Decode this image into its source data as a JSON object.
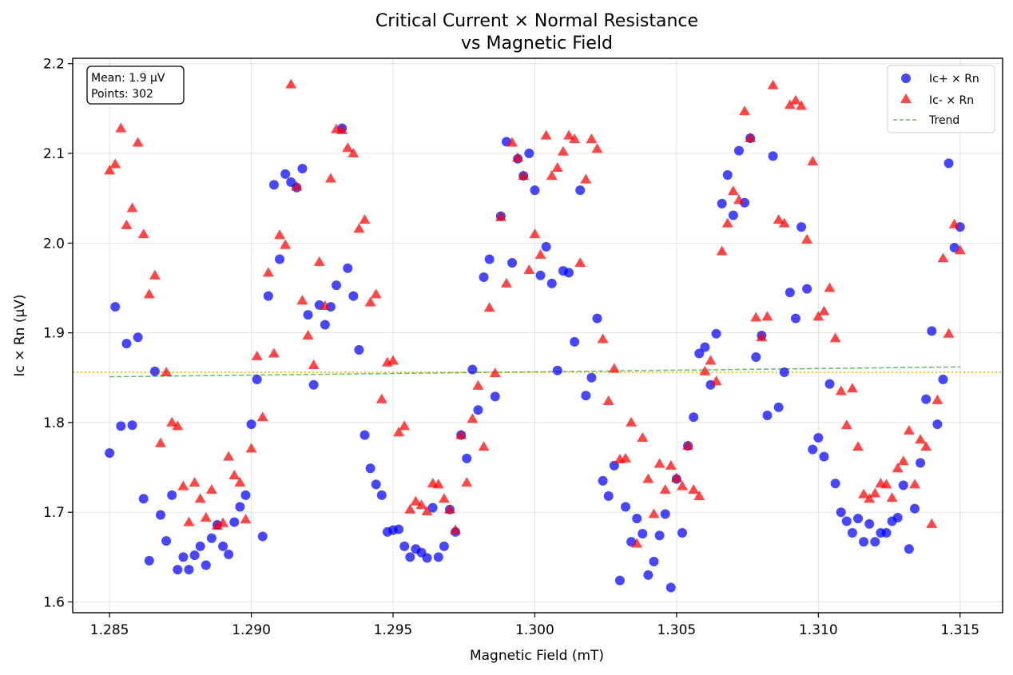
{
  "chart_data": {
    "type": "scatter",
    "title": "Critical Current × Normal Resistance",
    "subtitle": "vs Magnetic Field",
    "xlabel": "Magnetic Field (mT)",
    "ylabel": "Ic × Rn (µV)",
    "xlim": [
      1.2837,
      1.3165
    ],
    "ylim": [
      1.588,
      2.206
    ],
    "x_ticks": [
      "1.285",
      "1.290",
      "1.295",
      "1.300",
      "1.305",
      "1.310",
      "1.315"
    ],
    "x_tick_values": [
      1.285,
      1.29,
      1.295,
      1.3,
      1.305,
      1.31,
      1.315
    ],
    "y_ticks": [
      "1.6",
      "1.7",
      "1.8",
      "1.9",
      "2.0",
      "2.1",
      "2.2"
    ],
    "y_tick_values": [
      1.6,
      1.7,
      1.8,
      1.9,
      2.0,
      2.1,
      2.2
    ],
    "grid": true,
    "legend_position": "top-right",
    "info_box": {
      "mean_text": "Mean: 1.9 µV",
      "points_text": "Points: 302"
    },
    "mean_line": {
      "y": 1.856,
      "color": "#ffc125",
      "style": "dotted"
    },
    "trend": {
      "name": "Trend",
      "x": [
        1.285,
        1.315
      ],
      "y": [
        1.851,
        1.862
      ],
      "color": "#4daf4a"
    },
    "series": [
      {
        "name": "Ic+ × Rn",
        "marker": "circle",
        "color": "#0000ff",
        "x": [
          1.285,
          1.2852,
          1.2854,
          1.2856,
          1.2858,
          1.286,
          1.2862,
          1.2864,
          1.2866,
          1.2868,
          1.287,
          1.2872,
          1.2874,
          1.2876,
          1.2878,
          1.288,
          1.2882,
          1.2884,
          1.2886,
          1.2888,
          1.289,
          1.2892,
          1.2894,
          1.2896,
          1.2898,
          1.29,
          1.2902,
          1.2904,
          1.2906,
          1.2908,
          1.291,
          1.2912,
          1.2914,
          1.2916,
          1.2918,
          1.292,
          1.2922,
          1.2924,
          1.2926,
          1.2928,
          1.293,
          1.2932,
          1.2934,
          1.2936,
          1.2938,
          1.294,
          1.2942,
          1.2944,
          1.2946,
          1.2948,
          1.295,
          1.2952,
          1.2954,
          1.2956,
          1.2958,
          1.296,
          1.2962,
          1.2964,
          1.2966,
          1.2968,
          1.297,
          1.2972,
          1.2974,
          1.2976,
          1.2978,
          1.298,
          1.2982,
          1.2984,
          1.2986,
          1.2988,
          1.299,
          1.2992,
          1.2994,
          1.2996,
          1.2998,
          1.3,
          1.3002,
          1.3004,
          1.3006,
          1.3008,
          1.301,
          1.3012,
          1.3014,
          1.3016,
          1.3018,
          1.302,
          1.3022,
          1.3024,
          1.3026,
          1.3028,
          1.303,
          1.3032,
          1.3034,
          1.3036,
          1.3038,
          1.304,
          1.3042,
          1.3044,
          1.3046,
          1.3048,
          1.305,
          1.3052,
          1.3054,
          1.3056,
          1.3058,
          1.306,
          1.3062,
          1.3064,
          1.3066,
          1.3068,
          1.307,
          1.3072,
          1.3074,
          1.3076,
          1.3078,
          1.308,
          1.3082,
          1.3084,
          1.3086,
          1.3088,
          1.309,
          1.3092,
          1.3094,
          1.3096,
          1.3098,
          1.31,
          1.3102,
          1.3104,
          1.3106,
          1.3108,
          1.311,
          1.3112,
          1.3114,
          1.3116,
          1.3118,
          1.312,
          1.3122,
          1.3124,
          1.3126,
          1.3128,
          1.313,
          1.3132,
          1.3134,
          1.3136,
          1.3138,
          1.314,
          1.3142,
          1.3144,
          1.3146,
          1.3148,
          1.315
        ],
        "y": [
          1.766,
          1.929,
          1.796,
          1.888,
          1.797,
          1.895,
          1.715,
          1.646,
          1.857,
          1.697,
          1.668,
          1.719,
          1.636,
          1.65,
          1.636,
          1.652,
          1.662,
          1.641,
          1.671,
          1.686,
          1.662,
          1.653,
          1.689,
          1.706,
          1.719,
          1.798,
          1.848,
          1.673,
          1.941,
          2.065,
          1.982,
          2.077,
          2.068,
          2.062,
          2.083,
          1.92,
          1.842,
          1.931,
          1.909,
          1.929,
          1.953,
          2.128,
          1.972,
          1.941,
          1.881,
          1.786,
          1.749,
          1.731,
          1.719,
          1.678,
          1.68,
          1.681,
          1.662,
          1.65,
          1.659,
          1.655,
          1.649,
          1.705,
          1.65,
          1.662,
          1.703,
          1.678,
          1.786,
          1.76,
          1.859,
          1.814,
          1.962,
          1.982,
          1.829,
          2.03,
          2.113,
          1.978,
          2.094,
          2.075,
          2.1,
          2.059,
          1.964,
          1.996,
          1.955,
          1.858,
          1.969,
          1.967,
          1.89,
          2.059,
          1.83,
          1.85,
          1.916,
          1.735,
          1.718,
          1.752,
          1.624,
          1.706,
          1.667,
          1.693,
          1.676,
          1.63,
          1.645,
          1.674,
          1.698,
          1.616,
          1.737,
          1.677,
          1.774,
          1.806,
          1.877,
          1.884,
          1.842,
          1.899,
          2.044,
          2.076,
          2.031,
          2.103,
          2.045,
          2.117,
          1.873,
          1.897,
          1.808,
          2.097,
          1.817,
          1.856,
          1.945,
          1.916,
          2.018,
          1.949,
          1.77,
          1.783,
          1.762,
          1.843,
          1.732,
          1.7,
          1.69,
          1.677,
          1.693,
          1.667,
          1.687,
          1.667,
          1.677,
          1.677,
          1.69,
          1.694,
          1.73,
          1.659,
          1.704,
          1.755,
          1.826,
          1.902,
          1.798,
          1.848,
          2.089,
          1.995,
          2.018
        ]
      },
      {
        "name": "Ic- × Rn",
        "marker": "triangle",
        "color": "#ff0000",
        "x": [
          1.285,
          1.2852,
          1.2854,
          1.2856,
          1.2858,
          1.286,
          1.2862,
          1.2864,
          1.2866,
          1.2868,
          1.287,
          1.2872,
          1.2874,
          1.2876,
          1.2878,
          1.288,
          1.2882,
          1.2884,
          1.2886,
          1.2888,
          1.289,
          1.2892,
          1.2894,
          1.2896,
          1.2898,
          1.29,
          1.2902,
          1.2904,
          1.2906,
          1.2908,
          1.291,
          1.2912,
          1.2914,
          1.2916,
          1.2918,
          1.292,
          1.2922,
          1.2924,
          1.2926,
          1.2928,
          1.293,
          1.2932,
          1.2934,
          1.2936,
          1.2938,
          1.294,
          1.2942,
          1.2944,
          1.2946,
          1.2948,
          1.295,
          1.2952,
          1.2954,
          1.2956,
          1.2958,
          1.296,
          1.2962,
          1.2964,
          1.2966,
          1.2968,
          1.297,
          1.2972,
          1.2974,
          1.2976,
          1.2978,
          1.298,
          1.2982,
          1.2984,
          1.2986,
          1.2988,
          1.299,
          1.2992,
          1.2994,
          1.2996,
          1.2998,
          1.3,
          1.3002,
          1.3004,
          1.3006,
          1.3008,
          1.301,
          1.3012,
          1.3014,
          1.3016,
          1.3018,
          1.302,
          1.3022,
          1.3024,
          1.3026,
          1.3028,
          1.303,
          1.3032,
          1.3034,
          1.3036,
          1.3038,
          1.304,
          1.3042,
          1.3044,
          1.3046,
          1.3048,
          1.305,
          1.3052,
          1.3054,
          1.3056,
          1.3058,
          1.306,
          1.3062,
          1.3064,
          1.3066,
          1.3068,
          1.307,
          1.3072,
          1.3074,
          1.3076,
          1.3078,
          1.308,
          1.3082,
          1.3084,
          1.3086,
          1.3088,
          1.309,
          1.3092,
          1.3094,
          1.3096,
          1.3098,
          1.31,
          1.3102,
          1.3104,
          1.3106,
          1.3108,
          1.311,
          1.3112,
          1.3114,
          1.3116,
          1.3118,
          1.312,
          1.3122,
          1.3124,
          1.3126,
          1.3128,
          1.313,
          1.3132,
          1.3134,
          1.3136,
          1.3138,
          1.314,
          1.3142,
          1.3144,
          1.3146,
          1.3148,
          1.315
        ],
        "y": [
          2.081,
          2.088,
          2.128,
          2.02,
          2.039,
          2.112,
          2.01,
          1.943,
          1.964,
          1.777,
          1.856,
          1.8,
          1.796,
          1.729,
          1.689,
          1.733,
          1.715,
          1.694,
          1.725,
          1.685,
          1.688,
          1.762,
          1.741,
          1.733,
          1.692,
          1.771,
          1.874,
          1.806,
          1.967,
          1.877,
          2.009,
          1.998,
          2.177,
          2.063,
          1.936,
          1.897,
          1.864,
          1.979,
          1.93,
          2.072,
          2.127,
          2.126,
          2.106,
          2.1,
          2.016,
          2.026,
          1.934,
          1.943,
          1.826,
          1.867,
          1.869,
          1.789,
          1.796,
          1.703,
          1.712,
          1.708,
          1.701,
          1.732,
          1.731,
          1.715,
          1.703,
          1.68,
          1.786,
          1.733,
          1.804,
          1.841,
          1.773,
          1.928,
          1.855,
          2.029,
          1.955,
          2.112,
          2.095,
          2.075,
          1.97,
          2.01,
          1.987,
          2.12,
          2.075,
          2.084,
          2.102,
          2.12,
          2.116,
          1.978,
          2.071,
          2.116,
          2.105,
          1.893,
          1.824,
          1.86,
          1.759,
          1.76,
          1.8,
          1.665,
          1.783,
          1.737,
          1.698,
          1.754,
          1.725,
          1.752,
          1.738,
          1.729,
          1.774,
          1.725,
          1.718,
          1.857,
          1.869,
          1.846,
          1.991,
          2.022,
          2.058,
          2.048,
          2.147,
          2.117,
          1.917,
          1.895,
          1.918,
          2.176,
          2.026,
          2.022,
          2.154,
          2.159,
          2.153,
          2.004,
          2.091,
          1.918,
          1.924,
          1.95,
          1.894,
          1.835,
          1.797,
          1.838,
          1.773,
          1.72,
          1.715,
          1.721,
          1.732,
          1.731,
          1.716,
          1.749,
          1.757,
          1.791,
          1.731,
          1.781,
          1.773,
          1.687,
          1.825,
          1.983,
          1.899,
          2.021,
          1.992
        ]
      }
    ]
  }
}
